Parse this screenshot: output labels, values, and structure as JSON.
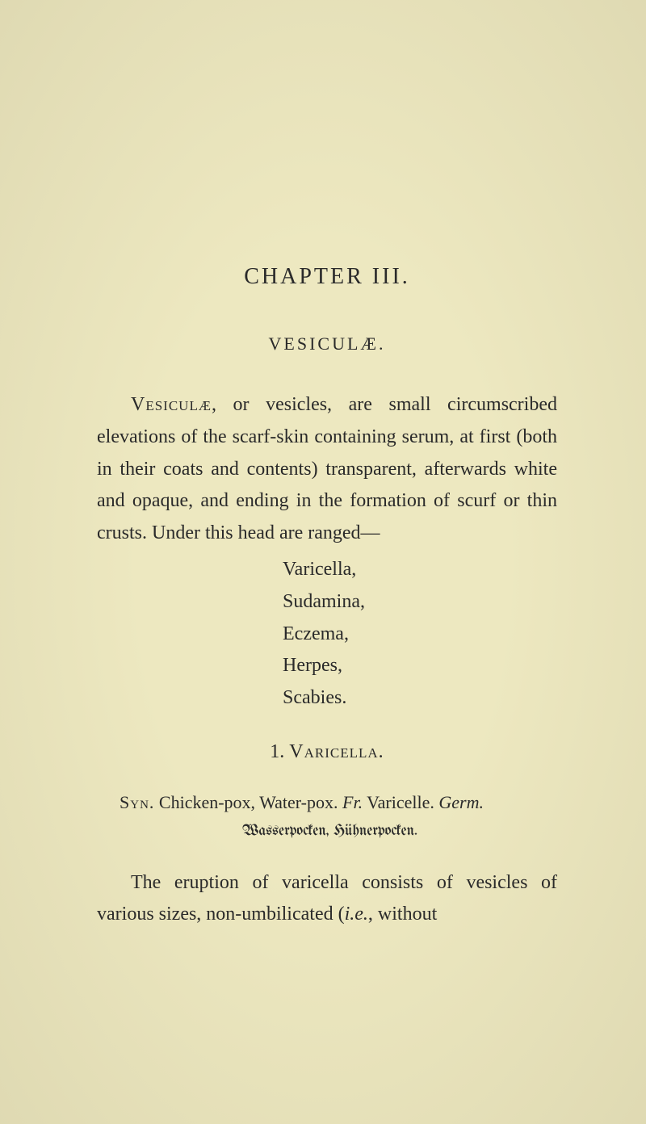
{
  "chapter": {
    "title": "CHAPTER III.",
    "sectionTitle": "VESICULÆ."
  },
  "intro": {
    "lead": "Vesiculæ",
    "rest": ", or vesicles, are small circumscribed elevations of the scarf-skin containing serum, at first (both in their coats and contents) transparent, afterwards white and opaque, and ending in the formation of scurf or thin crusts. Under this head are ranged—"
  },
  "list": {
    "items": [
      "Varicella,",
      "Sudamina,",
      "Eczema,",
      "Herpes,",
      "Scabies."
    ]
  },
  "subsection": {
    "number": "1. ",
    "name": "Varicella.",
    "synLabel": "Syn.",
    "synText": " Chicken-pox, Water-pox. ",
    "frLabel": "Fr.",
    "frText": " Varicelle. ",
    "germLabel": "Germ.",
    "germanLine": "Wasserpocken, Hühnerpocken."
  },
  "body": {
    "para1Start": "The eruption of varicella consists of vesicles of various sizes, non-umbilicated (",
    "para1Italic": "i.e.",
    "para1End": ", without"
  },
  "style": {
    "background": "#ede8c0",
    "text": "#2a2a2a"
  }
}
